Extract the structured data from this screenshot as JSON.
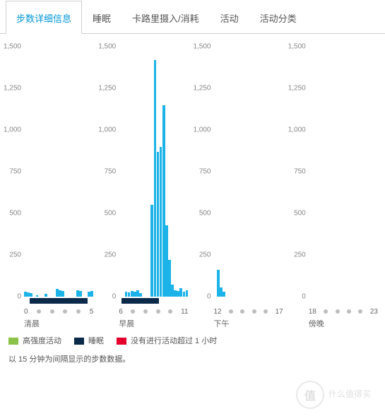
{
  "tabs": [
    {
      "label": "步数详细信息",
      "active": true
    },
    {
      "label": "睡眠",
      "active": false
    },
    {
      "label": "卡路里摄入/消耗",
      "active": false
    },
    {
      "label": "活动",
      "active": false
    },
    {
      "label": "活动分类",
      "active": false
    }
  ],
  "chart": {
    "type": "bar",
    "y_max": 1500,
    "y_ticks": [
      0,
      250,
      500,
      750,
      1000,
      1250,
      1500
    ],
    "bar_color": "#1cb3e8",
    "sleep_color": "#0b2a4a",
    "inactive_color": "#e4002b",
    "high_intensity_color": "#8bc34a",
    "dot_color": "#bdbdbd",
    "tick_text_color": "#888888",
    "bars_per_panel": 24,
    "panels": [
      {
        "x_start": "0",
        "x_end": "5",
        "period": "清晨",
        "values": [
          30,
          25,
          20,
          0,
          10,
          0,
          0,
          15,
          0,
          0,
          0,
          45,
          40,
          35,
          0,
          0,
          0,
          0,
          40,
          35,
          0,
          0,
          30,
          35
        ],
        "sleep": [
          {
            "from": 0.08,
            "to": 0.92
          }
        ]
      },
      {
        "x_start": "6",
        "x_end": "11",
        "period": "早晨",
        "values": [
          0,
          0,
          30,
          25,
          35,
          30,
          40,
          20,
          0,
          0,
          0,
          550,
          1420,
          870,
          900,
          1150,
          430,
          220,
          70,
          40,
          35,
          50,
          30,
          40
        ],
        "sleep": [
          {
            "from": 0.04,
            "to": 0.58
          }
        ]
      },
      {
        "x_start": "12",
        "x_end": "17",
        "period": "下午",
        "values": [
          0,
          160,
          55,
          30,
          0,
          0,
          0,
          0,
          0,
          0,
          0,
          0,
          0,
          0,
          0,
          0,
          0,
          0,
          0,
          0,
          0,
          0,
          0,
          0
        ],
        "sleep": []
      },
      {
        "x_start": "18",
        "x_end": "23",
        "period": "傍晚",
        "values": [
          0,
          0,
          0,
          0,
          0,
          0,
          0,
          0,
          0,
          0,
          0,
          0,
          0,
          0,
          0,
          0,
          0,
          0,
          0,
          0,
          0,
          0,
          0,
          0
        ],
        "sleep": []
      }
    ]
  },
  "legend": [
    {
      "color": "#8bc34a",
      "label": "高强度活动"
    },
    {
      "color": "#0b2a4a",
      "label": "睡眠"
    },
    {
      "color": "#e4002b",
      "label": "没有进行活动超过 1 小时"
    }
  ],
  "footnote": "以 15 分钟为间隔显示的步数数据。",
  "watermark": {
    "badge": "值",
    "text": "什么值得买"
  }
}
